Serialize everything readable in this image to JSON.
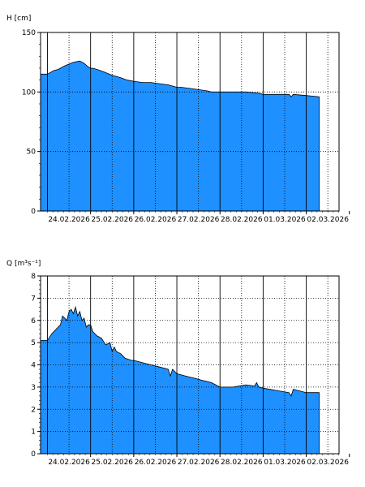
{
  "chart_data": [
    {
      "type": "area",
      "ylabel": "H [cm]",
      "ylim": [
        0,
        150
      ],
      "yticks": [
        0,
        50,
        100,
        150
      ],
      "xlabel": "",
      "xlim": [
        "23.02.2026 20:00",
        "03.03.2026 12:00"
      ],
      "x_tick_labels": [
        "24.02.2026",
        "25.02.2026",
        "26.02.2026",
        "27.02.2026",
        "28.02.2026",
        "01.03.2026",
        "02.03.2026"
      ],
      "grid": true,
      "fill_color": "#1e90ff",
      "series": [
        {
          "x": [
            0.0,
            0.15,
            0.25,
            0.4,
            0.6,
            0.75,
            0.85,
            0.95,
            1.0,
            1.05,
            1.15,
            1.3,
            1.5,
            1.7,
            1.85,
            2.0,
            2.2,
            2.4,
            2.6,
            2.8,
            3.0,
            3.1,
            3.3,
            3.5,
            3.7,
            3.8,
            3.9,
            4.0,
            4.3,
            4.6,
            4.9,
            5.0,
            5.3,
            5.6,
            5.65,
            5.7,
            6.0,
            6.3
          ],
          "y": [
            115,
            118,
            119,
            122,
            125,
            126,
            124,
            121,
            120,
            120,
            119,
            117,
            114,
            112,
            110,
            109,
            108,
            108,
            107,
            106,
            104,
            104,
            103,
            102,
            101,
            100,
            100,
            100,
            100,
            100,
            99,
            98,
            98,
            98,
            96,
            98,
            97,
            96
          ],
          "end_value": 96
        }
      ]
    },
    {
      "type": "area",
      "ylabel": "Q [m³s⁻¹]",
      "ylim": [
        0,
        8
      ],
      "yticks": [
        0,
        1,
        2,
        3,
        4,
        5,
        6,
        7,
        8
      ],
      "xlabel": "",
      "xlim": [
        "23.02.2026 20:00",
        "03.03.2026 12:00"
      ],
      "x_tick_labels": [
        "24.02.2026",
        "25.02.2026",
        "26.02.2026",
        "27.02.2026",
        "28.02.2026",
        "01.03.2026",
        "02.03.2026"
      ],
      "grid": true,
      "fill_color": "#1e90ff",
      "series": [
        {
          "x": [
            0.0,
            0.1,
            0.2,
            0.3,
            0.35,
            0.45,
            0.5,
            0.55,
            0.6,
            0.65,
            0.7,
            0.75,
            0.8,
            0.85,
            0.9,
            0.95,
            1.0,
            1.05,
            1.15,
            1.25,
            1.35,
            1.45,
            1.5,
            1.55,
            1.6,
            1.7,
            1.8,
            1.95,
            2.0,
            2.2,
            2.4,
            2.6,
            2.8,
            2.85,
            2.9,
            3.0,
            3.2,
            3.4,
            3.6,
            3.8,
            4.0,
            4.3,
            4.6,
            4.8,
            4.85,
            4.9,
            5.0,
            5.3,
            5.6,
            5.65,
            5.7,
            6.0,
            6.3
          ],
          "y": [
            5.1,
            5.4,
            5.6,
            5.8,
            6.2,
            6.0,
            6.4,
            6.5,
            6.3,
            6.6,
            6.2,
            6.4,
            6.0,
            6.1,
            5.7,
            5.8,
            5.8,
            5.5,
            5.3,
            5.2,
            4.9,
            5.0,
            4.6,
            4.8,
            4.6,
            4.5,
            4.3,
            4.2,
            4.2,
            4.1,
            4.0,
            3.9,
            3.8,
            3.5,
            3.8,
            3.6,
            3.5,
            3.4,
            3.3,
            3.2,
            3.0,
            3.0,
            3.1,
            3.05,
            3.2,
            3.0,
            2.95,
            2.85,
            2.75,
            2.6,
            2.9,
            2.75,
            2.75
          ],
          "end_value": 2.75
        }
      ]
    }
  ]
}
